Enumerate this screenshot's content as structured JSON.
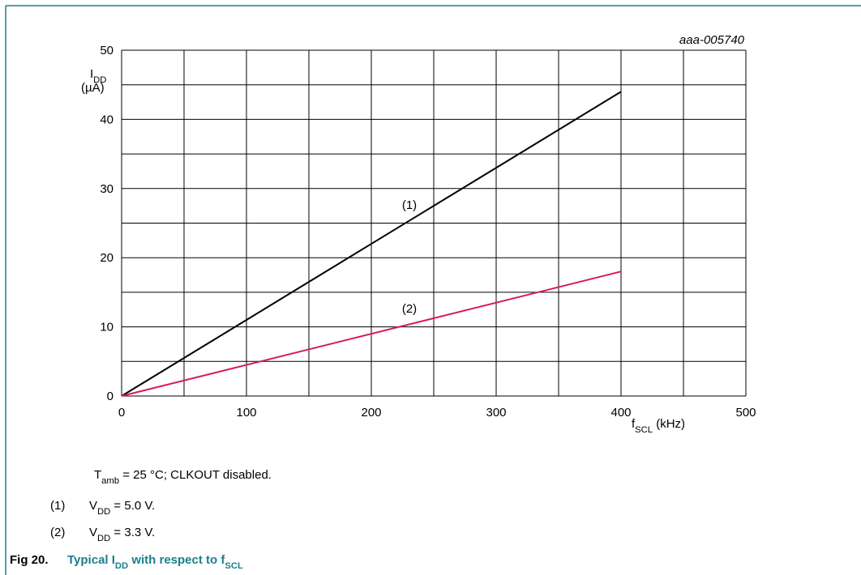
{
  "chart_data": {
    "type": "line",
    "code": "aaa-005740",
    "ylabel": [
      "I",
      "DD"
    ],
    "yunit": "(µA)",
    "xlabel": [
      "f",
      "SCL",
      " (kHz)"
    ],
    "xlim": [
      0,
      500
    ],
    "xticks": [
      0,
      100,
      200,
      300,
      400,
      500
    ],
    "xgrid": [
      0,
      50,
      100,
      150,
      200,
      250,
      300,
      350,
      400,
      450,
      500
    ],
    "ylim": [
      0,
      50
    ],
    "yticks": [
      0,
      10,
      20,
      30,
      40,
      50
    ],
    "ygrid": [
      0,
      5,
      10,
      15,
      20,
      25,
      30,
      35,
      40,
      45,
      50
    ],
    "grid": true,
    "x": [
      0,
      400
    ],
    "series": [
      {
        "name": "(1)",
        "color": "#000000",
        "values": [
          0,
          44
        ]
      },
      {
        "name": "(2)",
        "color": "#d81b60",
        "values": [
          0,
          18
        ]
      }
    ]
  },
  "notes": {
    "conditions": [
      "T",
      "amb",
      " = 25 °C; CLKOUT disabled."
    ],
    "items": [
      {
        "marker": "(1)",
        "text": [
          "V",
          "DD",
          " = 5.0 V."
        ]
      },
      {
        "marker": "(2)",
        "text": [
          "V",
          "DD",
          " = 3.3 V."
        ]
      }
    ]
  },
  "caption": {
    "number": "Fig 20.",
    "title": [
      "Typical I",
      "DD",
      " with respect to f",
      "SCL"
    ]
  }
}
